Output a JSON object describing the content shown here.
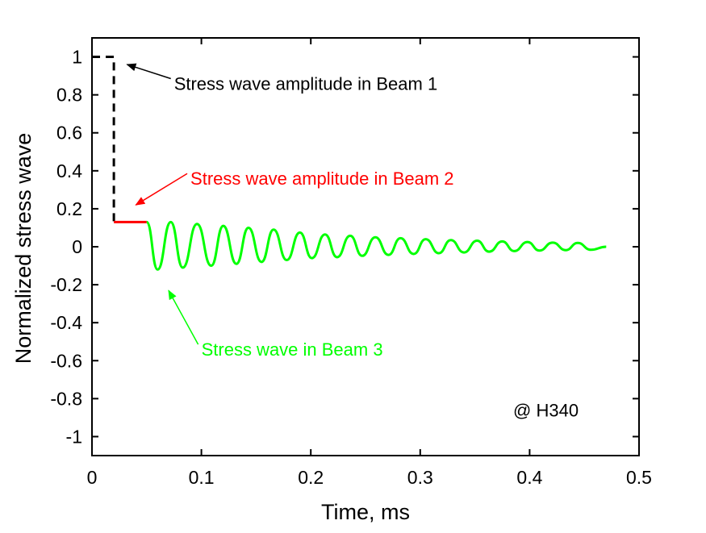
{
  "chart_data": {
    "type": "line",
    "title": "",
    "xlabel": "Time, ms",
    "ylabel": "Normalized stress wave",
    "xlim": [
      0,
      0.5
    ],
    "ylim": [
      -1.1,
      1.1
    ],
    "x_ticks": [
      0,
      0.1,
      0.2,
      0.3,
      0.4,
      0.5
    ],
    "x_tick_labels": [
      "0",
      "0.1",
      "0.2",
      "0.3",
      "0.4",
      "0.5"
    ],
    "y_ticks": [
      1,
      0.8,
      0.6,
      0.4,
      0.2,
      0,
      -0.2,
      -0.4,
      -0.6,
      -0.8,
      -1
    ],
    "y_tick_labels": [
      "1",
      "0.8",
      "0.6",
      "0.4",
      "0.2",
      "0",
      "-0.2",
      "-0.4",
      "-0.6",
      "-0.8",
      "-1"
    ],
    "grid": false,
    "series": [
      {
        "color": "#000000",
        "style": "dashed",
        "x": [
          0,
          0.02,
          0.02
        ],
        "y": [
          1,
          1,
          0.13
        ]
      },
      {
        "color": "#ff0000",
        "style": "solid",
        "x": [
          0.02,
          0.05
        ],
        "y": [
          0.13,
          0.13
        ]
      },
      {
        "color": "#00ff00",
        "style": "solid",
        "description_free": true,
        "x": [
          0.05,
          0.06,
          0.072,
          0.083,
          0.096,
          0.109,
          0.12,
          0.132,
          0.143,
          0.155,
          0.166,
          0.178,
          0.19,
          0.201,
          0.213,
          0.224,
          0.236,
          0.247,
          0.259,
          0.271,
          0.282,
          0.294,
          0.305,
          0.317,
          0.328,
          0.34,
          0.352,
          0.363,
          0.375,
          0.386,
          0.398,
          0.409,
          0.421,
          0.433,
          0.444,
          0.456,
          0.47
        ],
        "y": [
          0.13,
          -0.12,
          0.13,
          -0.11,
          0.12,
          -0.1,
          0.11,
          -0.09,
          0.1,
          -0.08,
          0.09,
          -0.07,
          0.075,
          -0.06,
          0.065,
          -0.055,
          0.058,
          -0.048,
          0.05,
          -0.043,
          0.045,
          -0.038,
          0.04,
          -0.034,
          0.035,
          -0.03,
          0.032,
          -0.026,
          0.028,
          -0.023,
          0.025,
          -0.02,
          0.022,
          -0.018,
          0.02,
          -0.016,
          0.0
        ]
      }
    ],
    "annotations": [
      {
        "text": "Stress wave amplitude in Beam 1",
        "color": "#000000",
        "x": 0.075,
        "y": 0.86,
        "anchor": "start",
        "arrow_to": [
          0.032,
          0.96
        ]
      },
      {
        "text": "Stress wave amplitude in Beam 2",
        "color": "#ff0000",
        "x": 0.09,
        "y": 0.36,
        "anchor": "start",
        "arrow_to": [
          0.04,
          0.22
        ]
      },
      {
        "text": "Stress wave in Beam 3",
        "color": "#00ff00",
        "x": 0.1,
        "y": -0.54,
        "anchor": "start",
        "arrow_to": [
          0.07,
          -0.23
        ]
      },
      {
        "text": "@ H340",
        "color": "#000000",
        "x": 0.385,
        "y": -0.86,
        "anchor": "start"
      }
    ]
  }
}
